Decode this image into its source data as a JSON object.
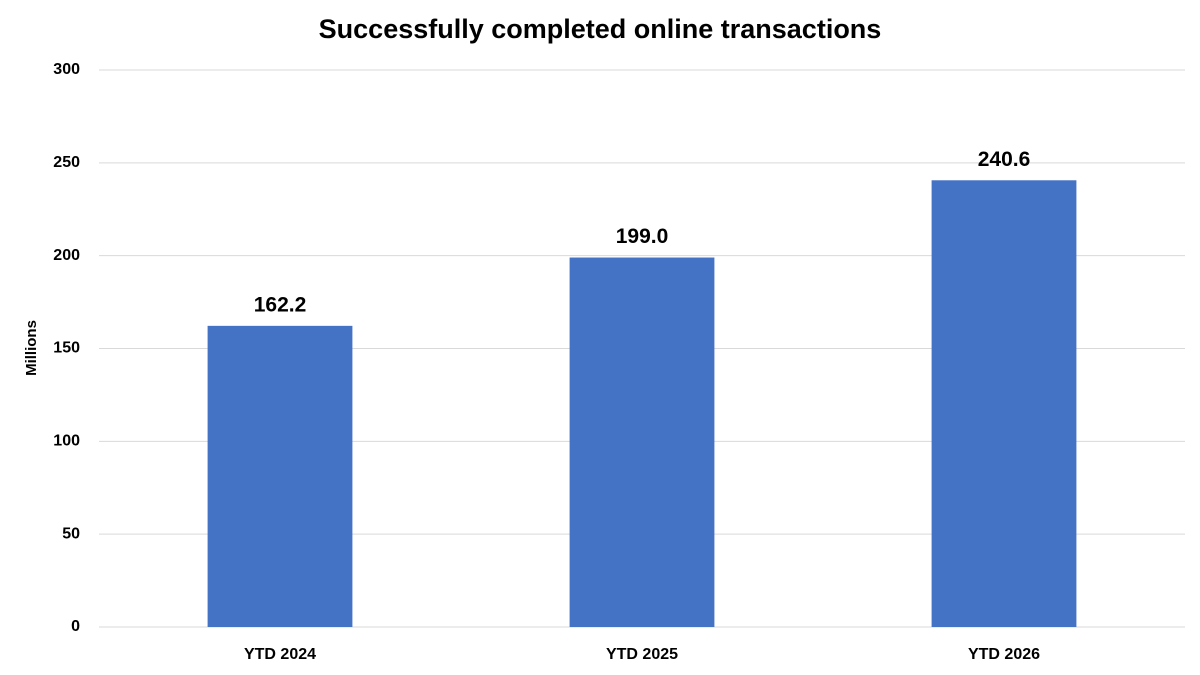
{
  "chart_data": {
    "type": "bar",
    "title": "Successfully completed online transactions",
    "y_label": "Millions",
    "categories": [
      "YTD 2024",
      "YTD 2025",
      "YTD 2026"
    ],
    "values": [
      162.2,
      199.0,
      240.6
    ],
    "value_labels": [
      "162.2",
      "199.0",
      "240.6"
    ],
    "color": "#4472c4",
    "ylim": [
      0,
      300
    ],
    "yticks": [
      0,
      50,
      100,
      150,
      200,
      250,
      300
    ],
    "grid": true
  }
}
